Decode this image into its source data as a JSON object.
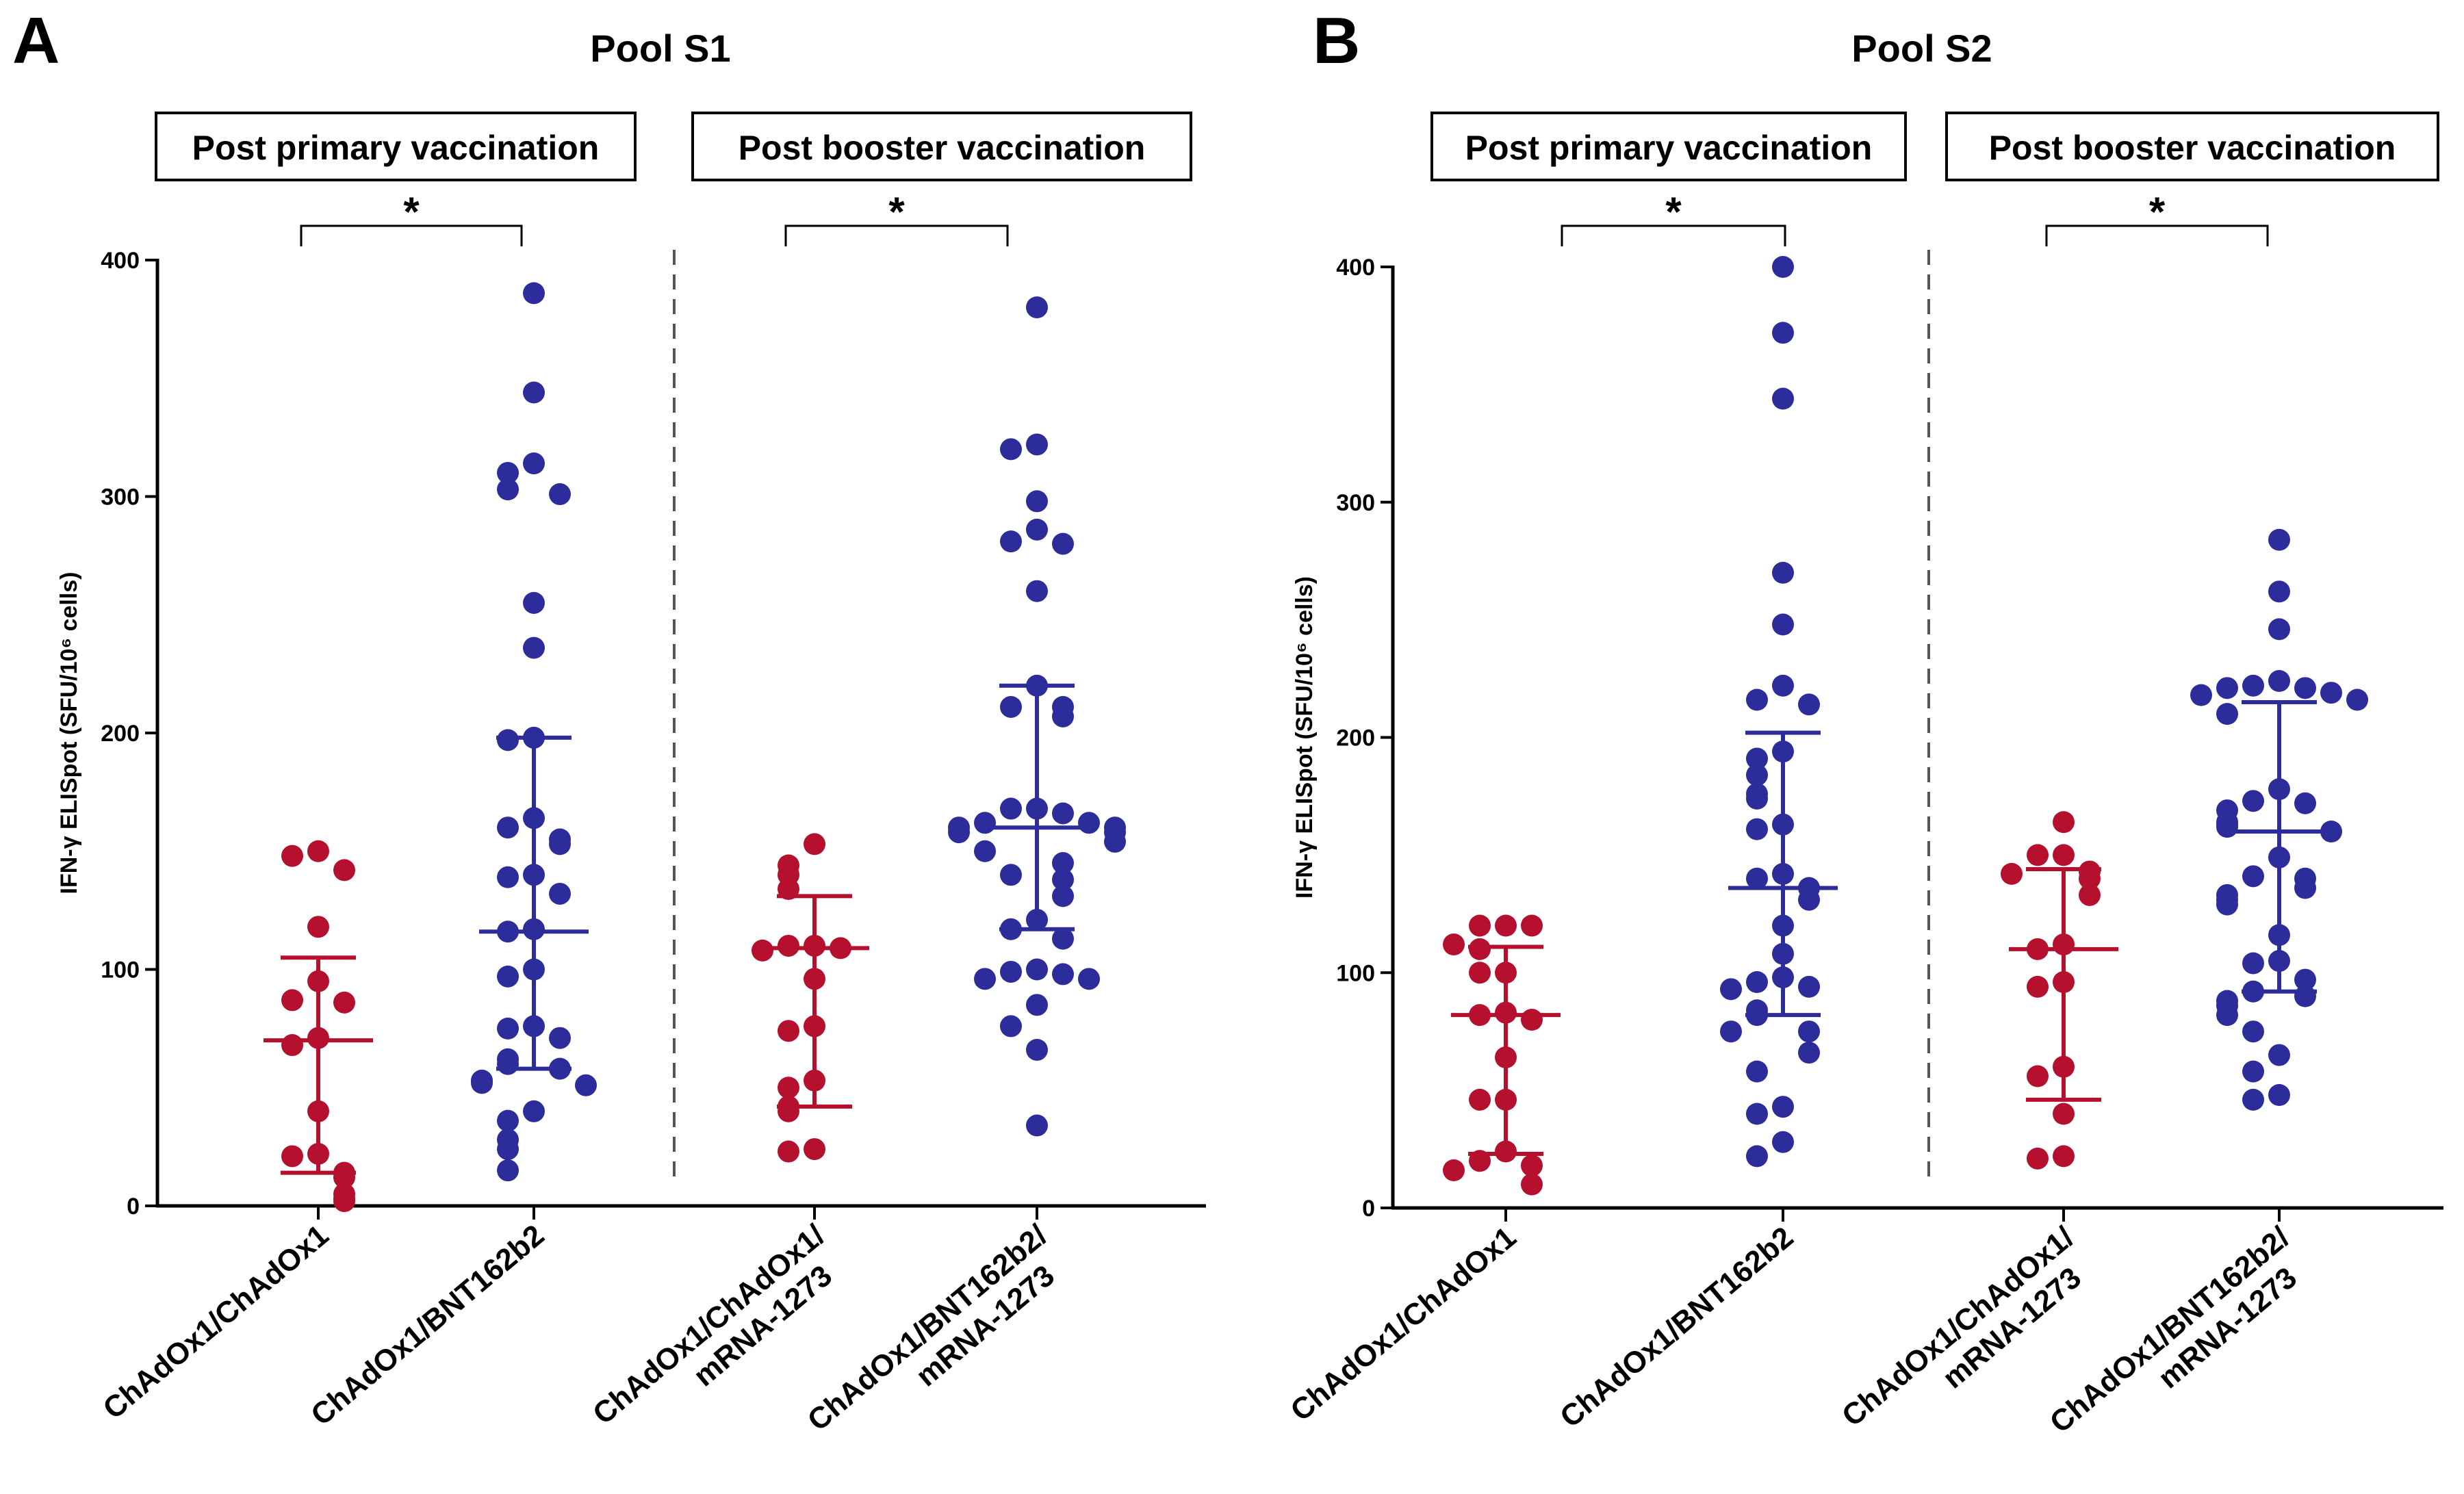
{
  "chart_data": [
    {
      "type": "scatter",
      "panel_letter": "A",
      "title": "Pool S1",
      "group_labels": [
        "Post primary vaccination",
        "Post booster vaccination"
      ],
      "ylabel": "IFN-γ ELISpot (SFU/10⁶ cells)",
      "ylim": [
        0,
        400
      ],
      "yticks": [
        "0",
        "100",
        "200",
        "300",
        "400"
      ],
      "significance": [
        "*",
        "*"
      ],
      "categories": [
        {
          "label_lines": [
            "ChAdOx1/ChAdOx1"
          ],
          "color": "#b5102e",
          "median": 70,
          "q1": 14,
          "q3": 105,
          "values": [
            150,
            148,
            142,
            118,
            95,
            87,
            86,
            71,
            68,
            40,
            22,
            21,
            14,
            12,
            5,
            3,
            2
          ]
        },
        {
          "label_lines": [
            "ChAdOx1/BNT162b2"
          ],
          "color": "#2c2c9a",
          "median": 116,
          "q1": 58,
          "q3": 198,
          "values": [
            386,
            344,
            314,
            310,
            303,
            301,
            255,
            236,
            198,
            197,
            164,
            160,
            155,
            153,
            140,
            139,
            132,
            117,
            116,
            100,
            97,
            76,
            75,
            71,
            62,
            60,
            58,
            53,
            52,
            51,
            40,
            36,
            28,
            24,
            15
          ]
        },
        {
          "label_lines": [
            "ChAdOx1/ChAdOx1/",
            "mRNA-1273"
          ],
          "color": "#b5102e",
          "median": 109,
          "q1": 42,
          "q3": 131,
          "values": [
            153,
            144,
            140,
            134,
            110,
            110,
            109,
            108,
            96,
            76,
            74,
            53,
            50,
            42,
            40,
            24,
            23
          ]
        },
        {
          "label_lines": [
            "ChAdOx1/BNT162b2/",
            "mRNA-1273"
          ],
          "color": "#2c2c9a",
          "median": 160,
          "q1": 117,
          "q3": 220,
          "values": [
            380,
            322,
            320,
            298,
            286,
            281,
            280,
            260,
            220,
            211,
            211,
            207,
            168,
            168,
            166,
            162,
            162,
            160,
            160,
            158,
            158,
            154,
            150,
            145,
            140,
            138,
            131,
            121,
            117,
            113,
            100,
            99,
            98,
            96,
            96,
            85,
            76,
            66,
            34
          ]
        }
      ]
    },
    {
      "type": "scatter",
      "panel_letter": "B",
      "title": "Pool S2",
      "group_labels": [
        "Post primary vaccination",
        "Post booster vaccination"
      ],
      "ylabel": "IFN-γ ELISpot (SFU/10⁶ cells)",
      "ylim": [
        0,
        400
      ],
      "yticks": [
        "0",
        "100",
        "200",
        "300",
        "400"
      ],
      "significance": [
        "*",
        "*"
      ],
      "categories": [
        {
          "label_lines": [
            "ChAdOx1/ChAdOx1"
          ],
          "color": "#b5102e",
          "median": 82,
          "q1": 23,
          "q3": 111,
          "values": [
            120,
            120,
            120,
            112,
            110,
            100,
            100,
            83,
            82,
            80,
            64,
            46,
            46,
            24,
            20,
            18,
            16,
            10
          ]
        },
        {
          "label_lines": [
            "ChAdOx1/BNT162b2"
          ],
          "color": "#2c2c9a",
          "median": 136,
          "q1": 82,
          "q3": 202,
          "values": [
            400,
            372,
            344,
            270,
            248,
            222,
            216,
            214,
            194,
            191,
            184,
            176,
            174,
            163,
            161,
            142,
            140,
            136,
            131,
            120,
            108,
            98,
            96,
            94,
            93,
            84,
            82,
            75,
            75,
            66,
            58,
            43,
            40,
            28,
            22
          ]
        },
        {
          "label_lines": [
            "ChAdOx1/ChAdOx1/",
            "mRNA-1273"
          ],
          "color": "#b5102e",
          "median": 110,
          "q1": 46,
          "q3": 144,
          "values": [
            164,
            150,
            150,
            143,
            142,
            140,
            133,
            112,
            110,
            96,
            94,
            60,
            56,
            40,
            22,
            21
          ]
        },
        {
          "label_lines": [
            "ChAdOx1/BNT162b2/",
            "mRNA-1273"
          ],
          "color": "#2c2c9a",
          "median": 160,
          "q1": 92,
          "q3": 215,
          "values": [
            284,
            262,
            246,
            224,
            222,
            221,
            221,
            219,
            218,
            216,
            210,
            178,
            173,
            172,
            169,
            164,
            163,
            162,
            160,
            149,
            141,
            140,
            136,
            133,
            131,
            129,
            116,
            105,
            104,
            97,
            92,
            90,
            88,
            86,
            82,
            75,
            65,
            58,
            48,
            46
          ]
        }
      ]
    }
  ]
}
